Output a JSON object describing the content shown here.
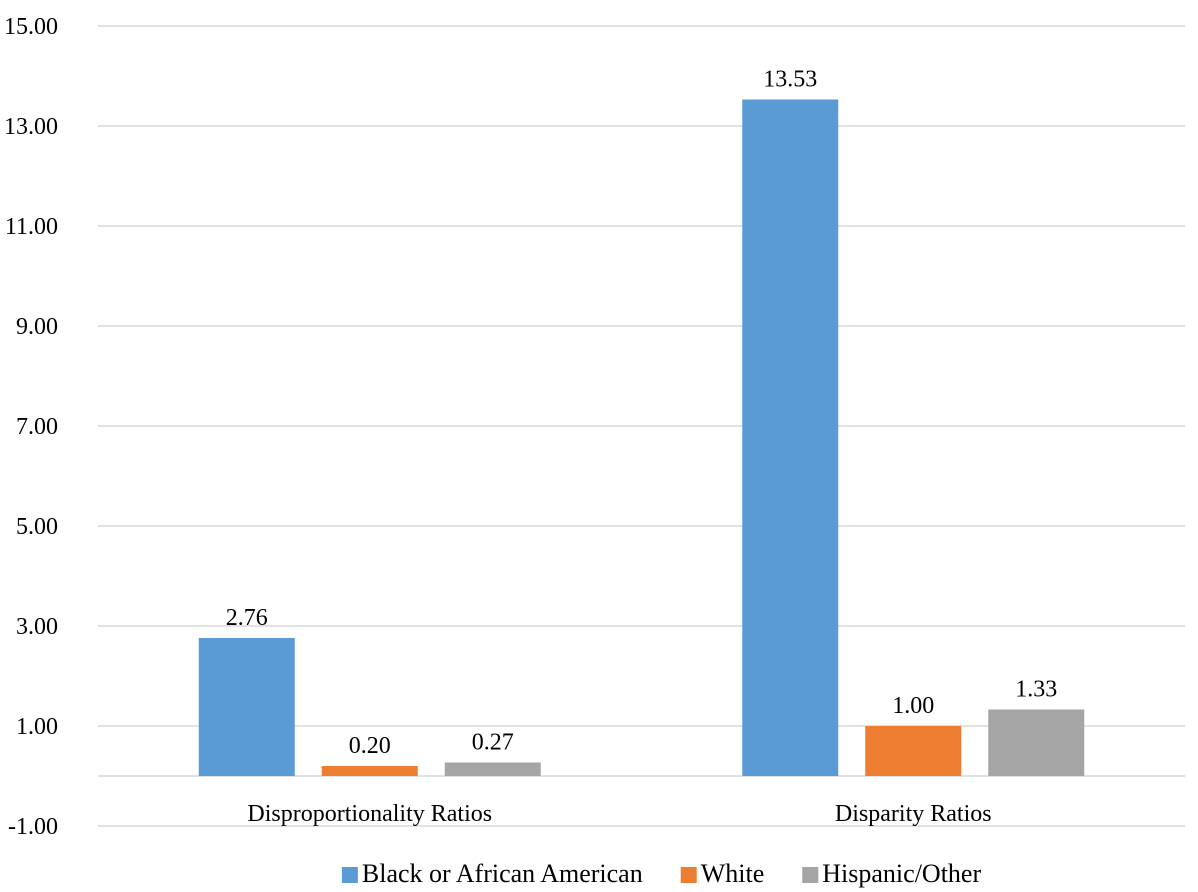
{
  "chart_data": {
    "type": "bar",
    "title": "",
    "xlabel": "",
    "ylabel": "",
    "categories": [
      "Disproportionality Ratios",
      "Disparity Ratios"
    ],
    "series": [
      {
        "name": "Black or African American",
        "values": [
          2.76,
          13.53
        ],
        "color": "#5B9BD5"
      },
      {
        "name": "White",
        "values": [
          0.2,
          1.0
        ],
        "color": "#ED7D31"
      },
      {
        "name": "Hispanic/Other",
        "values": [
          0.27,
          1.33
        ],
        "color": "#A5A5A5"
      }
    ],
    "data_labels": [
      [
        "2.76",
        "0.20",
        "0.27"
      ],
      [
        "13.53",
        "1.00",
        "1.33"
      ]
    ],
    "ylim": [
      -1,
      15
    ],
    "yticks": [
      -1,
      1,
      3,
      5,
      7,
      9,
      11,
      13,
      15
    ],
    "ytick_labels": [
      "-1.00",
      "1.00",
      "3.00",
      "5.00",
      "7.00",
      "9.00",
      "11.00",
      "13.00",
      "15.00"
    ],
    "grid": true,
    "legend_position": "bottom",
    "colors": {
      "gridline": "#D9D9D9",
      "axis": "#D9D9D9"
    }
  }
}
